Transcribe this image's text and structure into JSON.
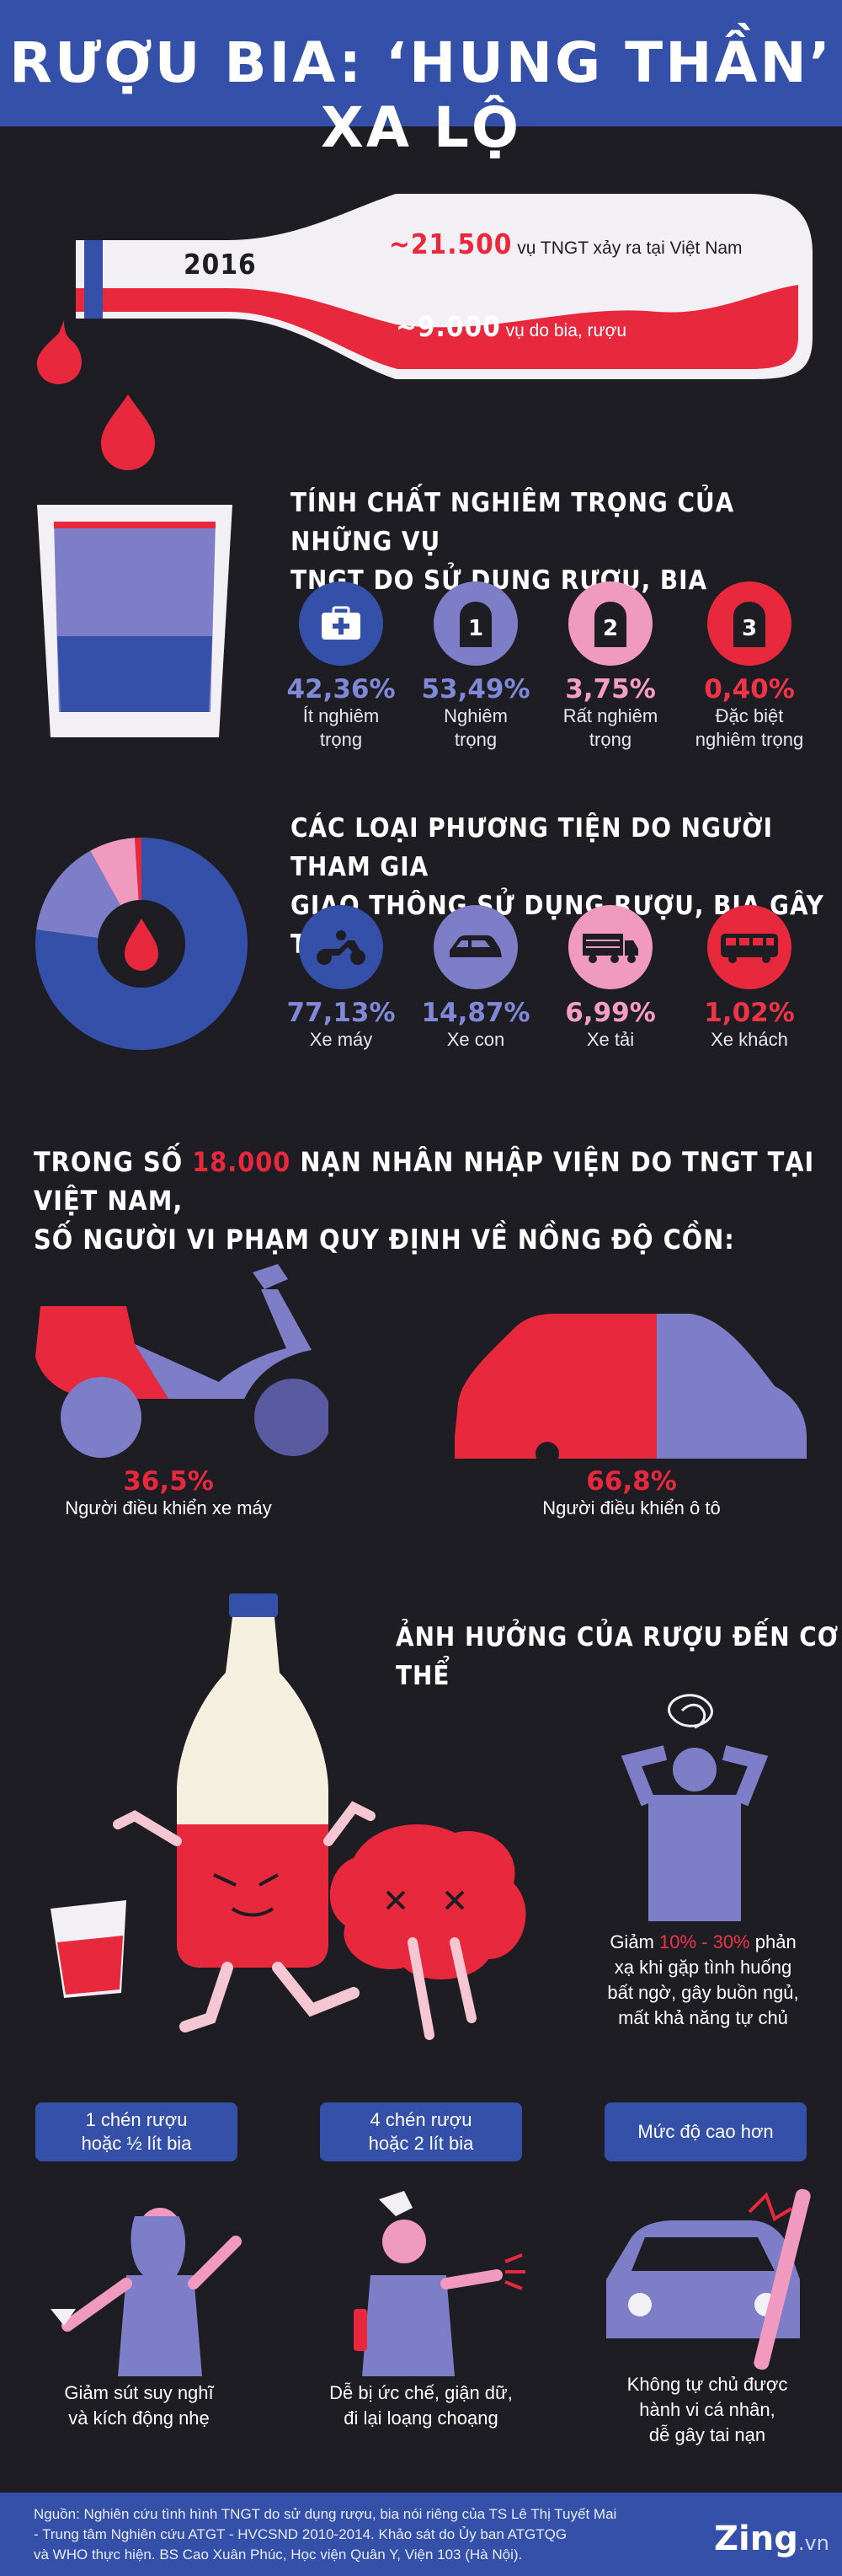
{
  "header": {
    "title": "RƯỢU BIA: ‘HUNG THẦN’ XA LỘ"
  },
  "bottle_section": {
    "year": "2016",
    "stat1_value": "~21.500",
    "stat1_text": "vụ TNGT xảy ra tại Việt Nam",
    "stat2_value": "~9.000",
    "stat2_text": "vụ do bia, rượu"
  },
  "severity": {
    "title_line1": "TÍNH CHẤT NGHIÊM TRỌNG CỦA NHỮNG VỤ",
    "title_line2": "TNGT DO SỬ DỤNG RƯỢU, BIA",
    "items": [
      {
        "value": "42,36%",
        "label1": "Ít nghiêm",
        "label2": "trọng",
        "icon": "first-aid-kit-icon",
        "color": "#3450a8",
        "value_color": "#8088d8"
      },
      {
        "value": "53,49%",
        "label1": "Nghiêm",
        "label2": "trọng",
        "icon": "tombstone-1-icon",
        "color": "#7e7ec8",
        "value_color": "#8088d8",
        "marker": "1"
      },
      {
        "value": "3,75%",
        "label1": "Rất nghiêm",
        "label2": "trọng",
        "icon": "tombstone-2-icon",
        "color": "#f09ac0",
        "value_color": "#f59fc6",
        "marker": "2"
      },
      {
        "value": "0,40%",
        "label1": "Đặc biệt",
        "label2": "nghiêm trọng",
        "icon": "tombstone-3-icon",
        "color": "#e8283c",
        "value_color": "#ef3448",
        "marker": "3"
      }
    ]
  },
  "vehicles": {
    "title_line1": "CÁC LOẠI PHƯƠNG TIỆN DO NGƯỜI THAM GIA",
    "title_line2": "GIAO THÔNG SỬ DỤNG RƯỢU, BIA GÂY TNGT",
    "items": [
      {
        "value": "77,13%",
        "label": "Xe máy",
        "icon": "motorbike-icon",
        "color": "#3450a8",
        "value_color": "#8088d8"
      },
      {
        "value": "14,87%",
        "label": "Xe con",
        "icon": "car-icon",
        "color": "#7e7ec8",
        "value_color": "#8088d8"
      },
      {
        "value": "6,99%",
        "label": "Xe tải",
        "icon": "truck-icon",
        "color": "#f09ac0",
        "value_color": "#f59fc6"
      },
      {
        "value": "1,02%",
        "label": "Xe khách",
        "icon": "bus-icon",
        "color": "#e8283c",
        "value_color": "#ef3448"
      }
    ],
    "chart_data": {
      "type": "pie",
      "categories": [
        "Xe máy",
        "Xe con",
        "Xe tải",
        "Xe khách"
      ],
      "values": [
        77.13,
        14.87,
        6.99,
        1.02
      ],
      "colors": [
        "#3450a8",
        "#7e7ec8",
        "#f09ac0",
        "#e8283c"
      ]
    }
  },
  "victims": {
    "title_line1_a": "TRONG SỐ ",
    "title_line1_highlight": "18.000",
    "title_line1_b": " NẠN NHÂN NHẬP VIỆN DO TNGT TẠI VIỆT NAM,",
    "title_line2": "SỐ NGƯỜI VI PHẠM QUY ĐỊNH VỀ NỒNG ĐỘ CỒN:",
    "moto_value": "36,5%",
    "moto_label": "Người điều khiển xe máy",
    "car_value": "66,8%",
    "car_label": "Người điều khiển ô tô"
  },
  "effects": {
    "title": "ẢNH HƯỞNG CỦA RƯỢU ĐẾN CƠ THỂ",
    "reflex_pre": "Giảm ",
    "reflex_highlight": "10% - 30%",
    "reflex_post1": " phản",
    "reflex_line2": "xạ khi gặp tình huống",
    "reflex_line3": "bất ngờ, gây buồn ngủ,",
    "reflex_line4": "mất khả năng tự chủ",
    "levels": [
      {
        "pill1": "1 chén rượu",
        "pill2": "hoặc ½ lít bia",
        "cap1": "Giảm sút suy nghĩ",
        "cap2": "và kích động nhẹ",
        "cap3": ""
      },
      {
        "pill1": "4 chén rượu",
        "pill2": "hoặc 2 lít bia",
        "cap1": "Dễ bị ức chế, giận dữ,",
        "cap2": "đi lại loạng choạng",
        "cap3": ""
      },
      {
        "pill1": "Mức độ cao hơn",
        "pill2": "",
        "cap1": "Không tự chủ được",
        "cap2": "hành vi cá nhân,",
        "cap3": "dễ gây tai nạn"
      }
    ]
  },
  "footer": {
    "line1": "Nguồn: Nghiên cứu tình hình TNGT do sử dụng rượu, bia nói riêng của TS Lê Thị Tuyết Mai",
    "line2": "- Trung tâm Nghiên cứu ATGT - HVCSND 2010-2014. Khảo sát do Ủy ban ATGTQG",
    "line3": "và WHO thực hiện. BS Cao Xuân Phúc, Học viện Quân Y, Viện 103 (Hà Nội).",
    "brand": "Zing",
    "brand_suffix": ".vn"
  },
  "colors": {
    "bg": "#1f1d24",
    "blue": "#3450a8",
    "lavender": "#7e7ec8",
    "pink": "#f09ac0",
    "red": "#e8283c"
  }
}
